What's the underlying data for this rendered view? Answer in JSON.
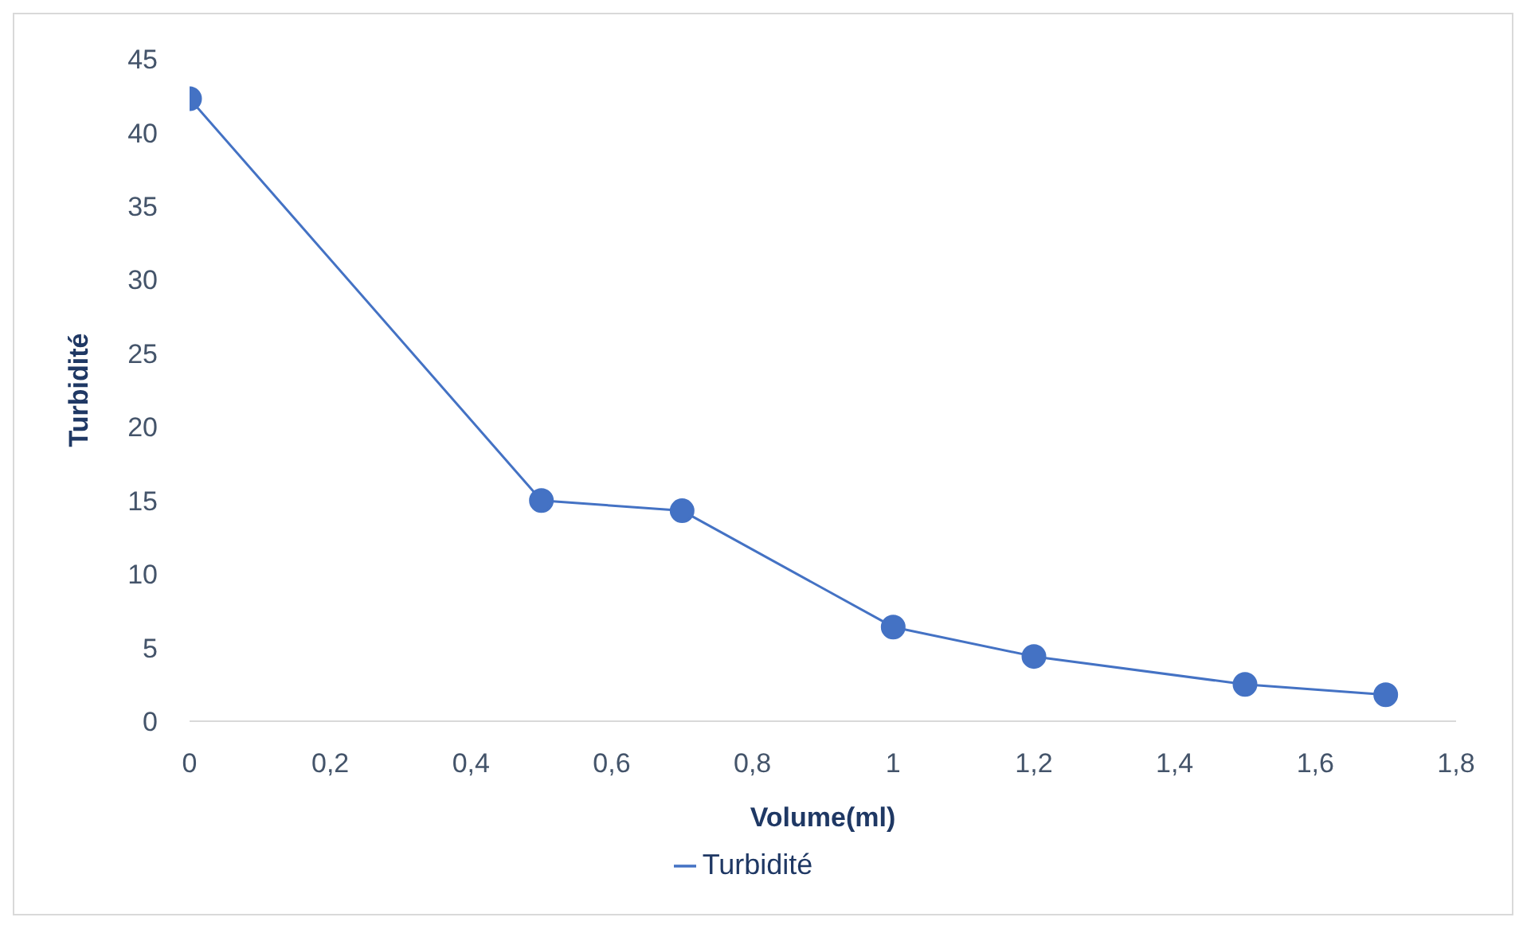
{
  "chart_data": {
    "type": "line",
    "xlabel": "Volume(ml)",
    "ylabel": "Turbidité",
    "x": [
      0,
      0.5,
      0.7,
      1,
      1.2,
      1.5,
      1.7
    ],
    "series": [
      {
        "name": "Turbidité",
        "color": "#4472c4",
        "values": [
          42.3,
          15,
          14.3,
          6.4,
          4.4,
          2.5,
          1.8
        ]
      }
    ],
    "xlim": [
      0,
      1.8
    ],
    "xticks": [
      0,
      {
        "value": 0.2,
        "label": "0,2"
      },
      {
        "value": 0.4,
        "label": "0,4"
      },
      {
        "value": 0.6,
        "label": "0,6"
      },
      {
        "value": 0.8,
        "label": "0,8"
      },
      1,
      {
        "value": 1.2,
        "label": "1,2"
      },
      {
        "value": 1.4,
        "label": "1,4"
      },
      {
        "value": 1.6,
        "label": "1,6"
      },
      {
        "value": 1.8,
        "label": "1,8"
      }
    ],
    "ylim": [
      0,
      45
    ],
    "yticks": [
      0,
      5,
      10,
      15,
      20,
      25,
      30,
      35,
      40,
      45
    ],
    "grid": false,
    "legend": "bottom",
    "marker": "circle",
    "line_style": "solid"
  }
}
